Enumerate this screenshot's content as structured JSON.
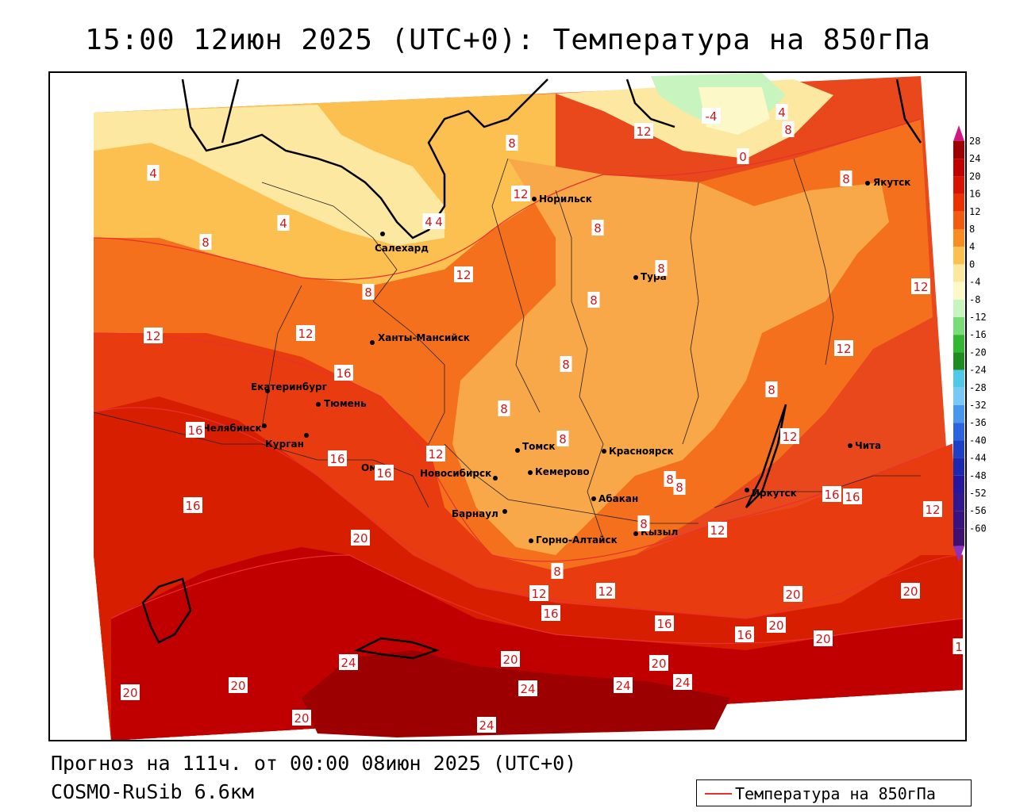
{
  "title": "15:00 12июн 2025 (UTC+0): Температура на 850гПа",
  "footer": {
    "forecast": "Прогноз на 111ч. от 00:00 08июн 2025 (UTC+0)",
    "model": "COSMO-RuSib 6.6км"
  },
  "legend": {
    "label": "Температура на 850гПа",
    "line_color": "#e83030"
  },
  "colorbar": {
    "levels": [
      "28",
      "24",
      "20",
      "16",
      "12",
      "8",
      "4",
      "0",
      "-4",
      "-8",
      "-12",
      "-16",
      "-20",
      "-24",
      "-28",
      "-32",
      "-36",
      "-40",
      "-44",
      "-48",
      "-52",
      "-56",
      "-60"
    ],
    "colors": [
      "#9c0000",
      "#c00000",
      "#d81400",
      "#ec3000",
      "#f45a10",
      "#f88c20",
      "#fcc050",
      "#fce8a0",
      "#fcf8c8",
      "#c8f4c0",
      "#78dc78",
      "#30b830",
      "#208c20",
      "#50c8e8",
      "#78c8f8",
      "#4898f0",
      "#2c64e0",
      "#1c40c8",
      "#1c28b0",
      "#2418a0",
      "#301890",
      "#381480",
      "#401070"
    ]
  },
  "cities": [
    {
      "name": "Норильск"
    },
    {
      "name": "Якутск"
    },
    {
      "name": "Салехард"
    },
    {
      "name": "Тура"
    },
    {
      "name": "Ханты-Мансийск"
    },
    {
      "name": "Екатеринбург"
    },
    {
      "name": "Тюмень"
    },
    {
      "name": "Челябинск"
    },
    {
      "name": "Курган"
    },
    {
      "name": "Омск"
    },
    {
      "name": "Томск"
    },
    {
      "name": "Красноярск"
    },
    {
      "name": "Новосибирск"
    },
    {
      "name": "Кемерово"
    },
    {
      "name": "Абакан"
    },
    {
      "name": "Иркутск"
    },
    {
      "name": "Чита"
    },
    {
      "name": "Барнаул"
    },
    {
      "name": "Горно-Алтайск"
    },
    {
      "name": "Кызыл"
    }
  ],
  "isolabels": [
    "8",
    "12",
    "8",
    "4",
    "-4",
    "4",
    "8",
    "0",
    "4",
    "12",
    "8",
    "8",
    "4",
    "4",
    "8",
    "12",
    "8",
    "8",
    "8",
    "12",
    "12",
    "12",
    "16",
    "8",
    "8",
    "16",
    "16",
    "8",
    "12",
    "12",
    "16",
    "16",
    "12",
    "8",
    "12",
    "16",
    "16",
    "12",
    "16",
    "12",
    "8",
    "8",
    "8",
    "20",
    "20",
    "20",
    "12",
    "16",
    "16",
    "20",
    "20",
    "24",
    "20",
    "20",
    "24",
    "20",
    "24",
    "24",
    "20",
    "20",
    "24",
    "1"
  ]
}
